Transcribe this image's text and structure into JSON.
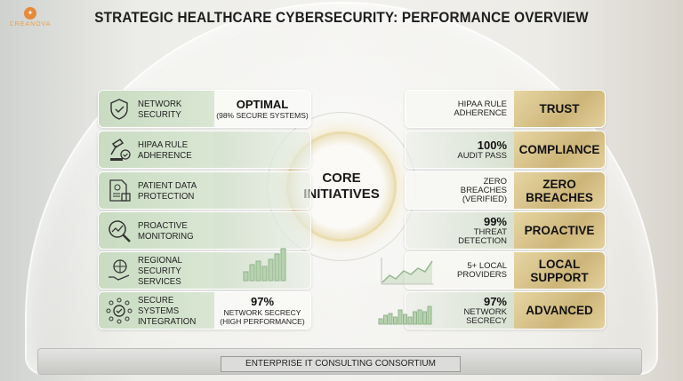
{
  "logo": {
    "text": "CREANOVA"
  },
  "title": "STRATEGIC HEALTHCARE CYBERSECURITY: PERFORMANCE OVERVIEW",
  "core": {
    "line1": "CORE",
    "line2": "INITIATIVES"
  },
  "left": [
    {
      "icon": "shield-network-icon",
      "label1": "NETWORK",
      "label2": "SECURITY",
      "value": "OPTIMAL",
      "sub1": "(98% SECURE SYSTEMS)"
    },
    {
      "icon": "gavel-check-icon",
      "label1": "HIPAA RULE",
      "label2": "ADHERENCE"
    },
    {
      "icon": "document-lock-icon",
      "label1": "PATIENT DATA",
      "label2": "PROTECTION"
    },
    {
      "icon": "magnifier-trend-icon",
      "label1": "PROACTIVE",
      "label2": "MONITORING"
    },
    {
      "icon": "globe-hand-icon",
      "label1": "REGIONAL SECURITY",
      "label2": "SERVICES"
    },
    {
      "icon": "network-check-icon",
      "label1": "SECURE SYSTEMS",
      "label2": "INTEGRATION",
      "value": "97%",
      "sub1": "NETWORK SECRECY",
      "sub2": "(HIGH PERFORMANCE)"
    }
  ],
  "right": [
    {
      "text1": "HIPAA RULE",
      "text2": "ADHERENCE",
      "badge1": "TRUST"
    },
    {
      "value": "100%",
      "text1": "AUDIT PASS",
      "badge1": "COMPLIANCE"
    },
    {
      "text1": "ZERO BREACHES",
      "text2": "(VERIFIED)",
      "badge1": "ZERO",
      "badge2": "BREACHES"
    },
    {
      "value": "99%",
      "text1": "THREAT",
      "text2": "DETECTION",
      "badge1": "PROACTIVE"
    },
    {
      "text1": "5+ LOCAL",
      "text2": "PROVIDERS",
      "badge1": "LOCAL",
      "badge2": "SUPPORT"
    },
    {
      "value": "97%",
      "text1": "NETWORK",
      "text2": "SECRECY",
      "badge1": "ADVANCED"
    }
  ],
  "footer": "ENTERPRISE IT CONSULTING CONSORTIUM",
  "colors": {
    "green": "#c9dcc2",
    "gold": "#cdb578",
    "accent": "#e58a3a"
  }
}
